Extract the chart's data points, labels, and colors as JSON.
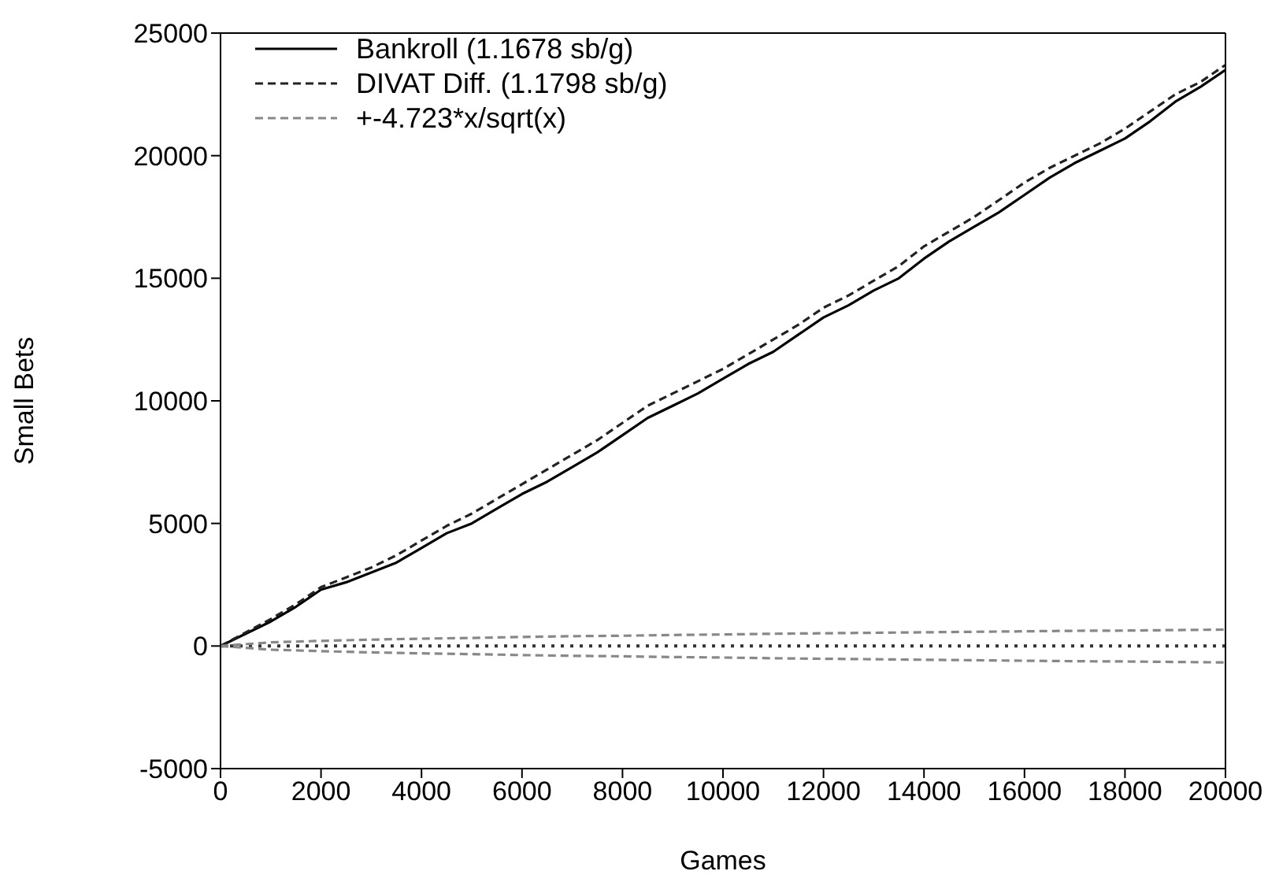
{
  "chart_data": {
    "type": "line",
    "xlabel": "Games",
    "ylabel": "Small Bets",
    "xlim": [
      0,
      20000
    ],
    "xticks": [
      0,
      2000,
      4000,
      6000,
      8000,
      10000,
      12000,
      14000,
      16000,
      18000,
      20000
    ],
    "ylim": [
      -5000,
      25000
    ],
    "yticks": [
      -5000,
      0,
      5000,
      10000,
      15000,
      20000,
      25000
    ],
    "legend": "top left",
    "ref_lines": [
      {
        "axis": "y",
        "value": 0,
        "color": "#333333",
        "line_style": "dotted"
      }
    ],
    "series": [
      {
        "name": "Bankroll (1.1678 sb/g)",
        "color": "#000000",
        "line_style": "solid",
        "x": [
          0,
          500,
          1000,
          1500,
          2000,
          2500,
          3000,
          3500,
          4000,
          4500,
          5000,
          5500,
          6000,
          6500,
          7000,
          7500,
          8000,
          8500,
          9000,
          9500,
          10000,
          10500,
          11000,
          11500,
          12000,
          12500,
          13000,
          13500,
          14000,
          14500,
          15000,
          15500,
          16000,
          16500,
          17000,
          17500,
          18000,
          18500,
          19000,
          19500,
          20000
        ],
        "values": [
          0,
          500,
          1000,
          1600,
          2300,
          2600,
          3000,
          3400,
          4000,
          4600,
          5000,
          5600,
          6200,
          6700,
          7300,
          7900,
          8600,
          9300,
          9800,
          10300,
          10900,
          11500,
          12000,
          12700,
          13400,
          13900,
          14500,
          15000,
          15800,
          16500,
          17100,
          17700,
          18400,
          19100,
          19700,
          20200,
          20700,
          21400,
          22200,
          22800,
          23500
        ]
      },
      {
        "name": "DIVAT Diff. (1.1798 sb/g)",
        "color": "#222222",
        "line_style": "dashed",
        "x": [
          0,
          500,
          1000,
          1500,
          2000,
          2500,
          3000,
          3500,
          4000,
          4500,
          5000,
          5500,
          6000,
          6500,
          7000,
          7500,
          8000,
          8500,
          9000,
          9500,
          10000,
          10500,
          11000,
          11500,
          12000,
          12500,
          13000,
          13500,
          14000,
          14500,
          15000,
          15500,
          16000,
          16500,
          17000,
          17500,
          18000,
          18500,
          19000,
          19500,
          20000
        ],
        "values": [
          0,
          550,
          1100,
          1700,
          2400,
          2800,
          3200,
          3700,
          4300,
          4900,
          5400,
          6000,
          6600,
          7200,
          7800,
          8400,
          9100,
          9800,
          10300,
          10800,
          11300,
          11900,
          12500,
          13100,
          13800,
          14300,
          14900,
          15500,
          16300,
          16900,
          17500,
          18200,
          18900,
          19500,
          20000,
          20500,
          21100,
          21800,
          22500,
          23000,
          23700
        ]
      },
      {
        "name": "+-4.723*x/sqrt(x)",
        "color": "#888888",
        "line_style": "dashed",
        "x": [
          0,
          1000,
          2000,
          3000,
          4000,
          5000,
          6000,
          7000,
          8000,
          9000,
          10000,
          11000,
          12000,
          13000,
          14000,
          15000,
          16000,
          17000,
          18000,
          19000,
          20000
        ],
        "values": [
          0,
          150,
          210,
          260,
          300,
          330,
          370,
          400,
          420,
          450,
          470,
          500,
          520,
          540,
          560,
          580,
          600,
          620,
          630,
          650,
          670
        ]
      },
      {
        "color": "#888888",
        "line_style": "dashed",
        "x": [
          0,
          1000,
          2000,
          3000,
          4000,
          5000,
          6000,
          7000,
          8000,
          9000,
          10000,
          11000,
          12000,
          13000,
          14000,
          15000,
          16000,
          17000,
          18000,
          19000,
          20000
        ],
        "values": [
          0,
          -150,
          -210,
          -260,
          -300,
          -330,
          -370,
          -400,
          -420,
          -450,
          -470,
          -500,
          -520,
          -540,
          -560,
          -580,
          -600,
          -620,
          -630,
          -650,
          -670
        ]
      }
    ]
  }
}
